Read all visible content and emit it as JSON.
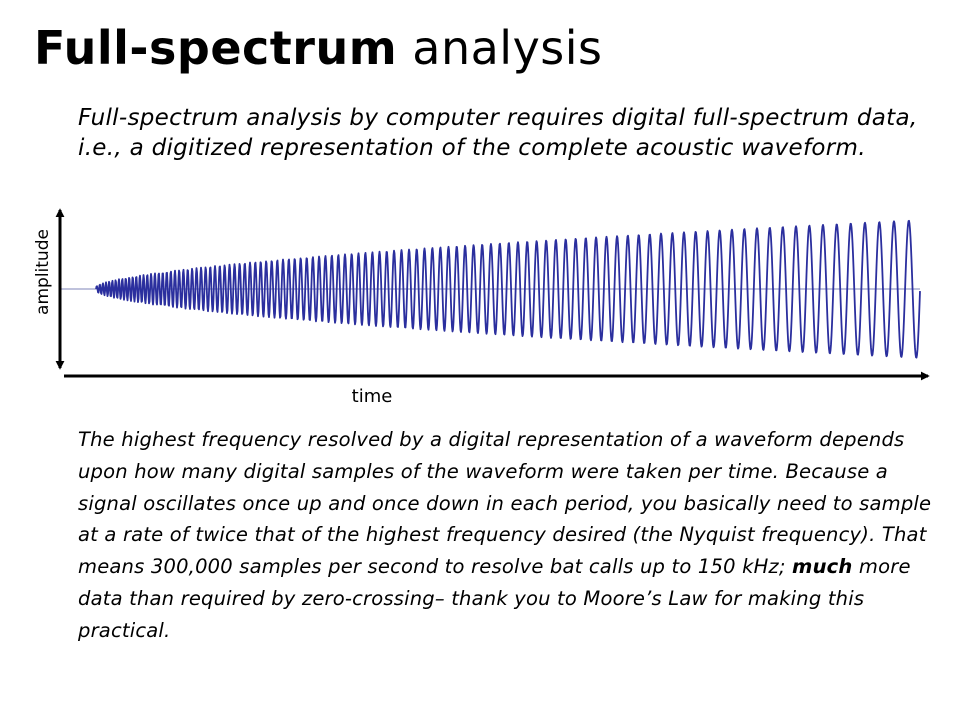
{
  "title": {
    "bold_part": "Full-spectrum",
    "regular_part": "analysis"
  },
  "intro_text": "Full-spectrum analysis by computer requires digital full-spectrum data, i.e., a digitized representation of the complete acoustic waveform.",
  "figure": {
    "y_axis_label": "amplitude",
    "x_axis_label": "time",
    "wave_color": "#2b2f9e",
    "axis_color": "#000000",
    "baseline_color": "#7f86b8"
  },
  "body": {
    "part1": "The highest frequency resolved by a digital representation of a waveform depends upon how many digital samples of the waveform were taken per time. Because a signal oscillates once up and once down in each period, you basically need to sample at a rate of twice that of the highest frequency desired (the Nyquist frequency). That means 300,000 samples per second to resolve bat calls up to 150 kHz;",
    "emphasis": "much",
    "part2": "more data than required by zero-crossing– thank you to Moore’s Law for making this practical."
  }
}
